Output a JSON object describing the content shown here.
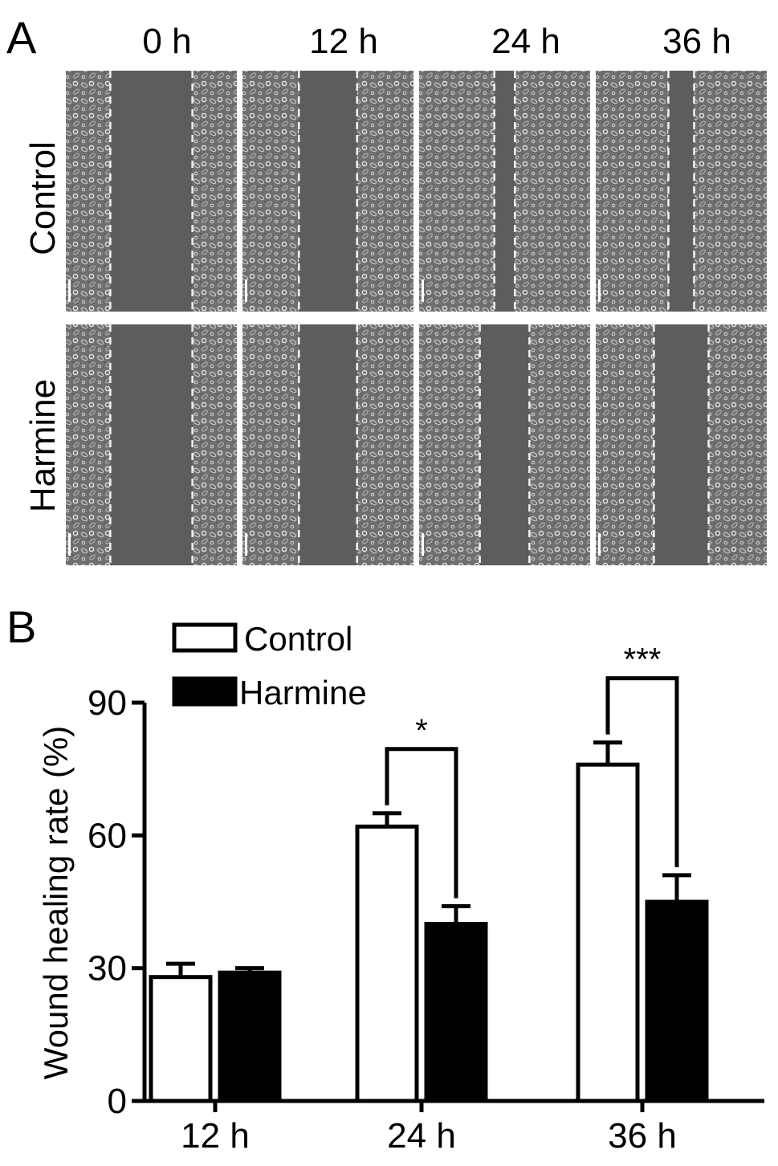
{
  "panel_a": {
    "label": "A",
    "timepoints": [
      "0 h",
      "12 h",
      "24 h",
      "36 h"
    ],
    "groups": [
      "Control",
      "Harmine"
    ],
    "wounds": {
      "Control": [
        0.48,
        0.34,
        0.12,
        0.15
      ],
      "Harmine": [
        0.48,
        0.34,
        0.29,
        0.32
      ]
    }
  },
  "panel_b": {
    "label": "B",
    "chart_data": {
      "type": "bar",
      "categories": [
        "12 h",
        "24 h",
        "36 h"
      ],
      "series": [
        {
          "name": "Control",
          "values": [
            28,
            62,
            76
          ],
          "errors": [
            3,
            3,
            5
          ],
          "color": "#ffffff"
        },
        {
          "name": "Harmine",
          "values": [
            29,
            40,
            45
          ],
          "errors": [
            1,
            4,
            6
          ],
          "color": "#000000"
        }
      ],
      "ylabel": "Wound healing rate (%)",
      "xlabel": "",
      "ylim": [
        0,
        90
      ],
      "yticks": [
        0,
        30,
        60,
        90
      ],
      "legend_position": "top-left",
      "grid": false,
      "significance": [
        {
          "category": "24 h",
          "label": "*"
        },
        {
          "category": "36 h",
          "label": "***"
        }
      ]
    }
  }
}
